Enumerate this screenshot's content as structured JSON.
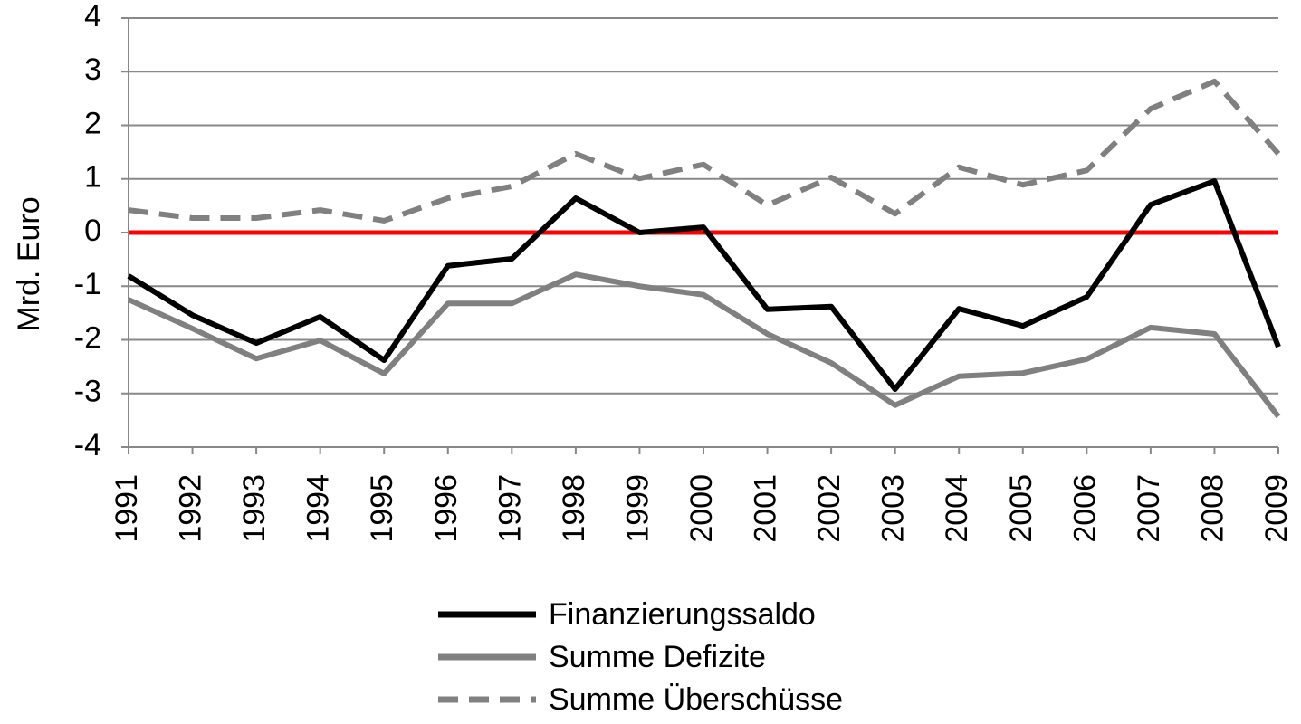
{
  "chart_data": {
    "type": "line",
    "y_label": "Mrd. Euro",
    "categories": [
      "1991",
      "1992",
      "1993",
      "1994",
      "1995",
      "1996",
      "1997",
      "1998",
      "1999",
      "2000",
      "2001",
      "2002",
      "2003",
      "2004",
      "2005",
      "2006",
      "2007",
      "2008",
      "2009"
    ],
    "series": [
      {
        "name": "Finanzierungssaldo",
        "color": "#000000",
        "dash": false,
        "values": [
          -0.81,
          -1.54,
          -2.06,
          -1.57,
          -2.38,
          -0.62,
          -0.49,
          0.64,
          0.0,
          0.1,
          -1.43,
          -1.38,
          -2.92,
          -1.42,
          -1.74,
          -1.2,
          0.52,
          0.96,
          -2.13
        ]
      },
      {
        "name": "Summe Defizite",
        "color": "#808080",
        "dash": false,
        "values": [
          -1.25,
          -1.79,
          -2.35,
          -2.01,
          -2.63,
          -1.32,
          -1.32,
          -0.78,
          -1.0,
          -1.16,
          -1.89,
          -2.43,
          -3.22,
          -2.68,
          -2.62,
          -2.36,
          -1.77,
          -1.89,
          -3.43
        ]
      },
      {
        "name": "Summe Überschüsse",
        "color": "#808080",
        "dash": true,
        "values": [
          0.42,
          0.27,
          0.27,
          0.42,
          0.22,
          0.64,
          0.86,
          1.47,
          1.01,
          1.27,
          0.51,
          1.03,
          0.35,
          1.22,
          0.89,
          1.16,
          2.31,
          2.82,
          1.47
        ]
      }
    ],
    "ylim": [
      -4,
      4
    ],
    "yticks": [
      -4,
      -3,
      -2,
      -1,
      0,
      1,
      2,
      3,
      4
    ],
    "grid": true,
    "zero_line_color": "#ff0000",
    "legend": "bottom"
  }
}
